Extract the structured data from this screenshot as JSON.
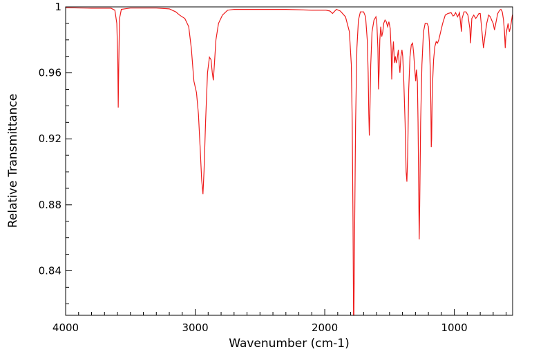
{
  "chart_data": {
    "type": "line",
    "title": "",
    "xlabel": "Wavenumber (cm-1)",
    "ylabel": "Relative Transmittance",
    "xlim": [
      4000,
      550
    ],
    "ylim": [
      0.813,
      1.0
    ],
    "x_reversed": true,
    "x_ticks": [
      4000,
      3000,
      2000,
      1000
    ],
    "x_tick_labels": [
      "4000",
      "3000",
      "2000",
      "1000"
    ],
    "y_ticks": [
      1.0,
      0.96,
      0.92,
      0.88,
      0.84
    ],
    "y_tick_labels": [
      "1",
      "0.96",
      "0.92",
      "0.88",
      "0.84"
    ],
    "grid": false,
    "legend": "none",
    "series": [
      {
        "color": "#ee1c1c",
        "points": [
          [
            4000,
            0.9995
          ],
          [
            3800,
            0.9992
          ],
          [
            3650,
            0.9992
          ],
          [
            3620,
            0.998
          ],
          [
            3605,
            0.99
          ],
          [
            3598,
            0.97
          ],
          [
            3594,
            0.939
          ],
          [
            3590,
            0.965
          ],
          [
            3584,
            0.993
          ],
          [
            3570,
            0.9985
          ],
          [
            3500,
            0.9993
          ],
          [
            3300,
            0.9993
          ],
          [
            3200,
            0.9988
          ],
          [
            3150,
            0.997
          ],
          [
            3120,
            0.995
          ],
          [
            3080,
            0.993
          ],
          [
            3050,
            0.988
          ],
          [
            3030,
            0.975
          ],
          [
            3010,
            0.955
          ],
          [
            2990,
            0.948
          ],
          [
            2975,
            0.935
          ],
          [
            2962,
            0.915
          ],
          [
            2950,
            0.895
          ],
          [
            2940,
            0.8865
          ],
          [
            2932,
            0.9
          ],
          [
            2920,
            0.93
          ],
          [
            2905,
            0.96
          ],
          [
            2890,
            0.9695
          ],
          [
            2878,
            0.968
          ],
          [
            2868,
            0.96
          ],
          [
            2860,
            0.9555
          ],
          [
            2852,
            0.965
          ],
          [
            2840,
            0.98
          ],
          [
            2820,
            0.99
          ],
          [
            2790,
            0.995
          ],
          [
            2750,
            0.998
          ],
          [
            2700,
            0.9985
          ],
          [
            2500,
            0.9985
          ],
          [
            2300,
            0.9985
          ],
          [
            2100,
            0.998
          ],
          [
            1990,
            0.998
          ],
          [
            1960,
            0.9975
          ],
          [
            1940,
            0.996
          ],
          [
            1910,
            0.9985
          ],
          [
            1880,
            0.9975
          ],
          [
            1840,
            0.994
          ],
          [
            1810,
            0.985
          ],
          [
            1795,
            0.965
          ],
          [
            1788,
            0.93
          ],
          [
            1782,
            0.87
          ],
          [
            1778,
            0.813
          ],
          [
            1775,
            0.813
          ],
          [
            1770,
            0.86
          ],
          [
            1762,
            0.93
          ],
          [
            1752,
            0.975
          ],
          [
            1740,
            0.992
          ],
          [
            1725,
            0.997
          ],
          [
            1700,
            0.997
          ],
          [
            1685,
            0.994
          ],
          [
            1672,
            0.98
          ],
          [
            1665,
            0.96
          ],
          [
            1660,
            0.935
          ],
          [
            1656,
            0.922
          ],
          [
            1652,
            0.935
          ],
          [
            1645,
            0.965
          ],
          [
            1635,
            0.985
          ],
          [
            1620,
            0.992
          ],
          [
            1605,
            0.994
          ],
          [
            1598,
            0.99
          ],
          [
            1590,
            0.975
          ],
          [
            1585,
            0.95
          ],
          [
            1580,
            0.962
          ],
          [
            1575,
            0.98
          ],
          [
            1568,
            0.988
          ],
          [
            1560,
            0.982
          ],
          [
            1552,
            0.985
          ],
          [
            1545,
            0.99
          ],
          [
            1535,
            0.992
          ],
          [
            1525,
            0.991
          ],
          [
            1515,
            0.988
          ],
          [
            1505,
            0.991
          ],
          [
            1495,
            0.987
          ],
          [
            1488,
            0.975
          ],
          [
            1483,
            0.956
          ],
          [
            1478,
            0.97
          ],
          [
            1470,
            0.979
          ],
          [
            1462,
            0.966
          ],
          [
            1455,
            0.97
          ],
          [
            1448,
            0.966
          ],
          [
            1442,
            0.968
          ],
          [
            1432,
            0.974
          ],
          [
            1426,
            0.966
          ],
          [
            1420,
            0.96
          ],
          [
            1412,
            0.97
          ],
          [
            1404,
            0.974
          ],
          [
            1398,
            0.97
          ],
          [
            1390,
            0.955
          ],
          [
            1380,
            0.93
          ],
          [
            1372,
            0.9
          ],
          [
            1366,
            0.894
          ],
          [
            1360,
            0.91
          ],
          [
            1352,
            0.95
          ],
          [
            1342,
            0.97
          ],
          [
            1332,
            0.977
          ],
          [
            1322,
            0.978
          ],
          [
            1314,
            0.972
          ],
          [
            1305,
            0.962
          ],
          [
            1298,
            0.955
          ],
          [
            1292,
            0.962
          ],
          [
            1285,
            0.955
          ],
          [
            1280,
            0.93
          ],
          [
            1275,
            0.89
          ],
          [
            1271,
            0.859
          ],
          [
            1267,
            0.88
          ],
          [
            1260,
            0.93
          ],
          [
            1250,
            0.965
          ],
          [
            1238,
            0.985
          ],
          [
            1225,
            0.99
          ],
          [
            1210,
            0.99
          ],
          [
            1200,
            0.988
          ],
          [
            1192,
            0.978
          ],
          [
            1185,
            0.96
          ],
          [
            1181,
            0.94
          ],
          [
            1178,
            0.915
          ],
          [
            1175,
            0.92
          ],
          [
            1170,
            0.95
          ],
          [
            1160,
            0.968
          ],
          [
            1150,
            0.976
          ],
          [
            1140,
            0.979
          ],
          [
            1130,
            0.978
          ],
          [
            1120,
            0.98
          ],
          [
            1105,
            0.985
          ],
          [
            1090,
            0.99
          ],
          [
            1070,
            0.995
          ],
          [
            1050,
            0.996
          ],
          [
            1025,
            0.9965
          ],
          [
            1010,
            0.9945
          ],
          [
            1000,
            0.995
          ],
          [
            990,
            0.9965
          ],
          [
            975,
            0.994
          ],
          [
            960,
            0.9965
          ],
          [
            945,
            0.985
          ],
          [
            940,
            0.993
          ],
          [
            925,
            0.997
          ],
          [
            910,
            0.997
          ],
          [
            895,
            0.995
          ],
          [
            880,
            0.9868
          ],
          [
            875,
            0.978
          ],
          [
            865,
            0.993
          ],
          [
            850,
            0.995
          ],
          [
            835,
            0.993
          ],
          [
            825,
            0.994
          ],
          [
            810,
            0.996
          ],
          [
            800,
            0.996
          ],
          [
            790,
            0.988
          ],
          [
            775,
            0.975
          ],
          [
            762,
            0.983
          ],
          [
            750,
            0.99
          ],
          [
            735,
            0.995
          ],
          [
            722,
            0.994
          ],
          [
            712,
            0.992
          ],
          [
            700,
            0.99
          ],
          [
            690,
            0.986
          ],
          [
            680,
            0.99
          ],
          [
            665,
            0.996
          ],
          [
            650,
            0.998
          ],
          [
            640,
            0.9985
          ],
          [
            630,
            0.997
          ],
          [
            620,
            0.992
          ],
          [
            613,
            0.985
          ],
          [
            607,
            0.975
          ],
          [
            602,
            0.982
          ],
          [
            595,
            0.986
          ],
          [
            585,
            0.99
          ],
          [
            575,
            0.985
          ],
          [
            565,
            0.988
          ],
          [
            558,
            0.992
          ],
          [
            552,
            0.995
          ],
          [
            550,
            0.995
          ]
        ]
      }
    ]
  }
}
